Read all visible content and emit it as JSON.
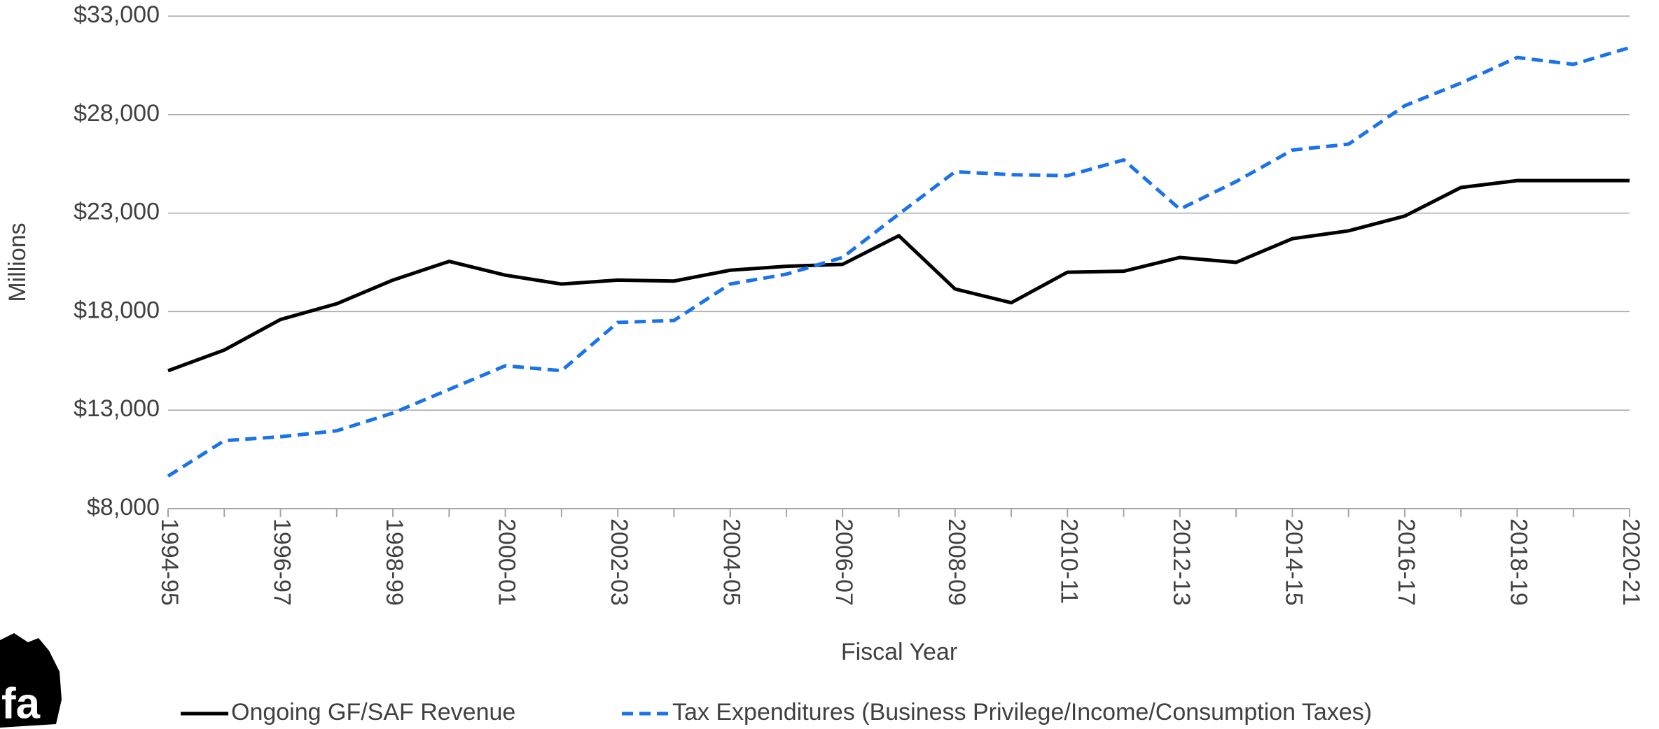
{
  "chart_data": {
    "type": "line",
    "x_label": "Fiscal Year",
    "y_label": "Millions",
    "logo_text": "fa",
    "categories": [
      "1994-95",
      null,
      "1996-97",
      null,
      "1998-99",
      null,
      "2000-01",
      null,
      "2002-03",
      null,
      "2004-05",
      null,
      "2006-07",
      null,
      "2008-09",
      null,
      "2010-11",
      null,
      "2012-13",
      null,
      "2014-15",
      null,
      "2016-17",
      null,
      "2018-19",
      null,
      "2020-21"
    ],
    "series": [
      {
        "name": "Ongoing GF/SAF Revenue",
        "color": "#000000",
        "dash": false,
        "values": [
          15000,
          16050,
          17600,
          18400,
          19600,
          20550,
          19850,
          19400,
          19600,
          19550,
          20100,
          20300,
          20400,
          21850,
          19150,
          18450,
          20000,
          20050,
          20750,
          20500,
          21700,
          22100,
          22850,
          24300,
          24650,
          24650,
          24650
        ]
      },
      {
        "name": "Tax Expenditures (Business Privilege/Income/Consumption Taxes)",
        "color": "#1a73e8",
        "dash": true,
        "values": [
          9650,
          11450,
          11650,
          11950,
          12850,
          14050,
          15250,
          15000,
          17450,
          17550,
          19400,
          19900,
          20750,
          22950,
          25100,
          24950,
          24900,
          25700,
          23200,
          24600,
          26200,
          26500,
          28450,
          29600,
          30900,
          30550,
          31400
        ]
      }
    ],
    "ylim": [
      8000,
      33000
    ],
    "yticks": [
      {
        "value": 8000,
        "label": "$8,000"
      },
      {
        "value": 13000,
        "label": "$13,000"
      },
      {
        "value": 18000,
        "label": "$18,000"
      },
      {
        "value": 23000,
        "label": "$23,000"
      },
      {
        "value": 28000,
        "label": "$28,000"
      },
      {
        "value": 33000,
        "label": "$33,000"
      }
    ],
    "grid": true,
    "legend": "bottom"
  }
}
